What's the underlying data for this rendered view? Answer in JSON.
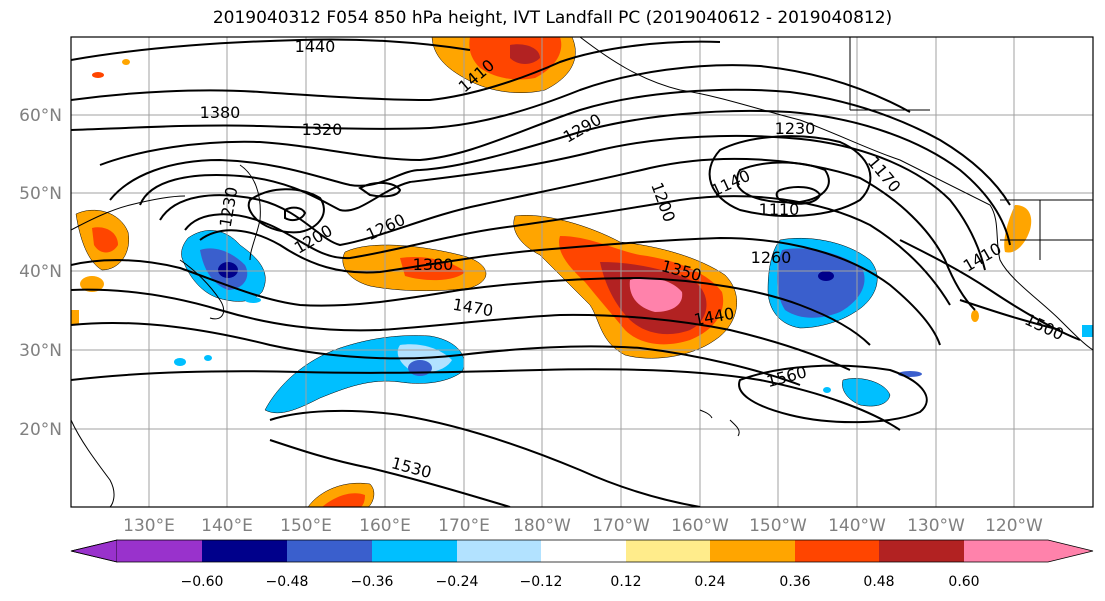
{
  "title": "2019040312 F054 850 hPa height, IVT Landfall PC (2019040612 - 2019040812)",
  "map": {
    "lon_labels": [
      "130°E",
      "140°E",
      "150°E",
      "160°E",
      "170°E",
      "180°W",
      "170°W",
      "160°W",
      "150°W",
      "140°W",
      "130°W",
      "120°W"
    ],
    "lat_labels": [
      "60°N",
      "50°N",
      "40°N",
      "30°N",
      "20°N"
    ],
    "contour_labels": [
      "1440",
      "1410",
      "1380",
      "1320",
      "1290",
      "1230",
      "1170",
      "1140",
      "1110",
      "1200",
      "1230",
      "1260",
      "1200",
      "1380",
      "1350",
      "1260",
      "1410",
      "1470",
      "1440",
      "1500",
      "1560",
      "1530"
    ],
    "shading_colors": {
      "neg_060": "#9932cc",
      "neg_048": "#00008b",
      "neg_036": "#3a5fcd",
      "neg_024": "#00bfff",
      "neg_012": "#b2e2ff",
      "neutral": "#ffffff",
      "pos_012": "#ffec8b",
      "pos_024": "#ffa500",
      "pos_036": "#ff4500",
      "pos_048": "#b22222",
      "pos_060": "#ff82ab"
    }
  },
  "colorbar": {
    "ticks": [
      "−0.60",
      "−0.48",
      "−0.36",
      "−0.24",
      "−0.12",
      "0.12",
      "0.24",
      "0.36",
      "0.48",
      "0.60"
    ],
    "colors": [
      "#9932cc",
      "#00008b",
      "#3a5fcd",
      "#00bfff",
      "#b2e2ff",
      "#ffffff",
      "#ffec8b",
      "#ffa500",
      "#ff4500",
      "#b22222",
      "#ff82ab"
    ]
  }
}
